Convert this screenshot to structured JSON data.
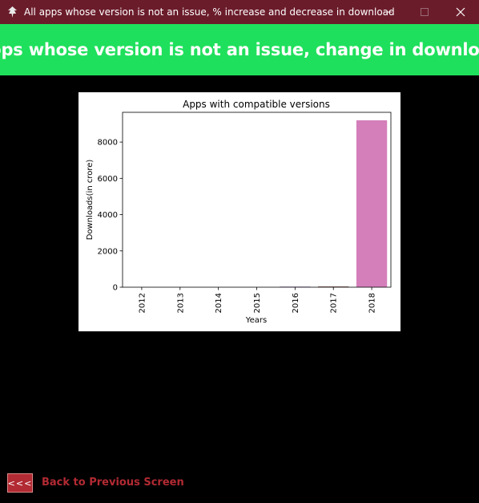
{
  "window": {
    "title": "All apps whose version is not an issue, % increase and decrease in download",
    "icons": {
      "app": "feather-icon",
      "minimize": "minimize-icon",
      "maximize": "maximize-icon",
      "close": "close-icon"
    }
  },
  "header": {
    "text": "Apps whose version is not an issue, change in download"
  },
  "chart_data": {
    "type": "bar",
    "title": "Apps with compatible versions",
    "xlabel": "Years",
    "ylabel": "Downloads(in crore)",
    "categories": [
      "2012",
      "2013",
      "2014",
      "2015",
      "2016",
      "2017",
      "2018"
    ],
    "values": [
      0,
      0,
      0,
      0,
      30,
      40,
      9200
    ],
    "colors": [
      "#3b75af",
      "#ef8636",
      "#519e3e",
      "#c53932",
      "#8d69b8",
      "#84584e",
      "#d47eba"
    ],
    "ylim": [
      0,
      9640
    ],
    "yticks": [
      0,
      2000,
      4000,
      6000,
      8000
    ],
    "grid": false,
    "legend": "none"
  },
  "footer": {
    "back_button": "<<<",
    "back_label": "Back to Previous Screen",
    "accent": "#b22a33"
  }
}
